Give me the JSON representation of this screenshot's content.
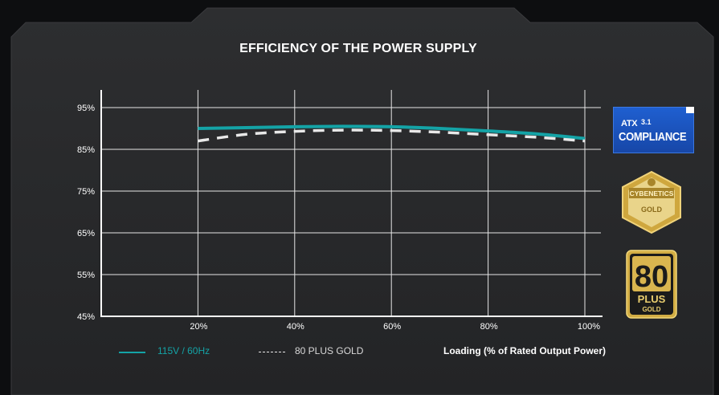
{
  "title": "EFFICIENCY OF THE POWER SUPPLY",
  "legend": {
    "series1_label": "115V / 60Hz",
    "series2_label": "80 PLUS GOLD",
    "x_axis_title": "Loading (% of Rated Output Power)"
  },
  "badges": {
    "atx_label": "ATX",
    "atx_version": "3.1",
    "atx_compliance": "COMPLIANCE",
    "cybenetics_label": "CYBENETICS",
    "cybenetics_grade": "GOLD",
    "plus_number": "80",
    "plus_label": "PLUS",
    "plus_grade": "GOLD"
  },
  "colors": {
    "series1": "#14a3a6",
    "series2": "#e8e8e8",
    "panel": "#2b2c2e",
    "gold": "#e4c35a"
  },
  "chart_data": {
    "type": "line",
    "title": "EFFICIENCY OF THE POWER SUPPLY",
    "xlabel": "Loading (% of Rated Output Power)",
    "ylabel": "",
    "x_ticks": [
      "20%",
      "40%",
      "60%",
      "80%",
      "100%"
    ],
    "y_ticks": [
      "45%",
      "55%",
      "65%",
      "75%",
      "85%",
      "95%"
    ],
    "xlim": [
      0,
      100
    ],
    "ylim": [
      45,
      100
    ],
    "grid": true,
    "legend_position": "bottom-left",
    "series": [
      {
        "name": "115V / 60Hz",
        "style": "solid",
        "color": "#14a3a6",
        "x": [
          20,
          30,
          40,
          50,
          60,
          70,
          80,
          90,
          100
        ],
        "y": [
          90.0,
          90.2,
          90.4,
          90.5,
          90.4,
          90.0,
          89.4,
          88.7,
          87.6
        ]
      },
      {
        "name": "80 PLUS GOLD",
        "style": "dashed",
        "color": "#e8e8e8",
        "x": [
          20,
          30,
          40,
          50,
          60,
          70,
          80,
          90,
          100
        ],
        "y": [
          87.0,
          88.6,
          89.3,
          89.6,
          89.5,
          89.1,
          88.5,
          87.9,
          87.0
        ]
      }
    ]
  }
}
